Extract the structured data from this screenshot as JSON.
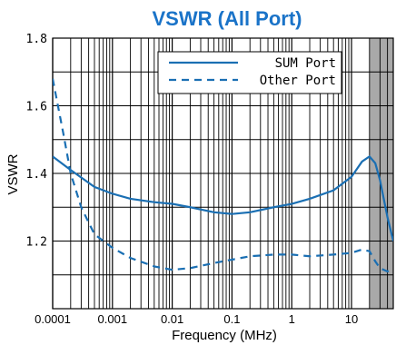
{
  "chart_data": {
    "type": "line",
    "title": "VSWR (All Port)",
    "xlabel": "Frequency (MHz)",
    "ylabel": "VSWR",
    "x_scale": "log",
    "xlim": [
      0.0001,
      50
    ],
    "ylim": [
      1.0,
      1.8
    ],
    "x_ticks": [
      {
        "value": 0.0001,
        "label": "0.0001"
      },
      {
        "value": 0.001,
        "label": "0.001"
      },
      {
        "value": 0.01,
        "label": "0.01"
      },
      {
        "value": 0.1,
        "label": "0.1"
      },
      {
        "value": 1,
        "label": "1"
      },
      {
        "value": 10,
        "label": "10"
      }
    ],
    "y_ticks": [
      {
        "value": 1.2,
        "label": "1.2"
      },
      {
        "value": 1.4,
        "label": "1.4"
      },
      {
        "value": 1.6,
        "label": "1.6"
      },
      {
        "value": 1.8,
        "label": "1.8"
      }
    ],
    "grid": true,
    "shaded_region": [
      20,
      50
    ],
    "legend_position": "top-right",
    "colors": {
      "line": "#1a6fb3",
      "title": "#1a73c8",
      "shade": "#a9a9a9",
      "grid": "#000000"
    },
    "series": [
      {
        "name": "SUM Port",
        "style": "solid",
        "x": [
          0.0001,
          0.0002,
          0.0005,
          0.001,
          0.002,
          0.005,
          0.01,
          0.02,
          0.05,
          0.1,
          0.2,
          0.5,
          1,
          2,
          5,
          10,
          15,
          20,
          25,
          30,
          40,
          50
        ],
        "y": [
          1.45,
          1.41,
          1.36,
          1.34,
          1.325,
          1.315,
          1.31,
          1.3,
          1.285,
          1.28,
          1.285,
          1.3,
          1.31,
          1.325,
          1.35,
          1.39,
          1.435,
          1.45,
          1.43,
          1.38,
          1.27,
          1.2
        ]
      },
      {
        "name": "Other Port",
        "style": "dashed",
        "x": [
          0.0001,
          0.00015,
          0.0002,
          0.0003,
          0.0005,
          0.001,
          0.002,
          0.005,
          0.01,
          0.02,
          0.05,
          0.1,
          0.2,
          0.5,
          1,
          2,
          5,
          10,
          15,
          20,
          25,
          30,
          40,
          50
        ],
        "y": [
          1.68,
          1.52,
          1.4,
          1.3,
          1.22,
          1.18,
          1.15,
          1.125,
          1.115,
          1.12,
          1.135,
          1.145,
          1.155,
          1.16,
          1.16,
          1.155,
          1.16,
          1.165,
          1.175,
          1.17,
          1.14,
          1.12,
          1.11,
          1.12
        ]
      }
    ]
  }
}
